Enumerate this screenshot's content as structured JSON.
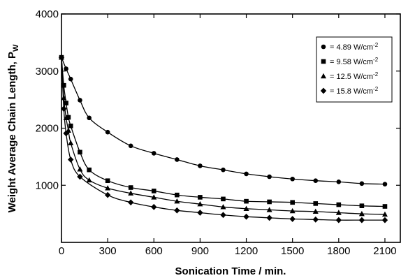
{
  "chart_data": {
    "type": "scatter",
    "xlabel": "Sonication Time / min.",
    "ylabel": "Weight Average Chain Length, P",
    "ylabel_sub": "W",
    "xlim": [
      0,
      2200
    ],
    "ylim": [
      0,
      4000
    ],
    "x_ticks": [
      "0",
      "300",
      "600",
      "900",
      "1200",
      "1500",
      "1800",
      "2100"
    ],
    "x_tick_values": [
      0,
      300,
      600,
      900,
      1200,
      1500,
      1800,
      2100
    ],
    "y_ticks": [
      "1000",
      "2000",
      "3000",
      "4000"
    ],
    "y_tick_values": [
      1000,
      2000,
      3000,
      4000
    ],
    "legend_position": "top-right",
    "series": [
      {
        "name": "= 4.89 W/cm",
        "name_sup": "-2",
        "marker": "circle",
        "points": [
          [
            0,
            3240
          ],
          [
            30,
            3040
          ],
          [
            60,
            2860
          ],
          [
            120,
            2490
          ],
          [
            180,
            2180
          ],
          [
            300,
            1930
          ],
          [
            450,
            1690
          ],
          [
            600,
            1560
          ],
          [
            750,
            1450
          ],
          [
            900,
            1340
          ],
          [
            1050,
            1270
          ],
          [
            1200,
            1200
          ],
          [
            1350,
            1150
          ],
          [
            1500,
            1110
          ],
          [
            1650,
            1080
          ],
          [
            1800,
            1060
          ],
          [
            1950,
            1030
          ],
          [
            2100,
            1020
          ]
        ]
      },
      {
        "name": "= 9.58 W/cm",
        "name_sup": "-2",
        "marker": "square",
        "points": [
          [
            0,
            3240
          ],
          [
            15,
            2750
          ],
          [
            30,
            2440
          ],
          [
            45,
            2190
          ],
          [
            60,
            2040
          ],
          [
            120,
            1580
          ],
          [
            180,
            1270
          ],
          [
            300,
            1080
          ],
          [
            450,
            960
          ],
          [
            600,
            900
          ],
          [
            750,
            830
          ],
          [
            900,
            790
          ],
          [
            1050,
            760
          ],
          [
            1200,
            720
          ],
          [
            1350,
            710
          ],
          [
            1500,
            700
          ],
          [
            1650,
            680
          ],
          [
            1800,
            660
          ],
          [
            1950,
            640
          ],
          [
            2100,
            630
          ]
        ]
      },
      {
        "name": "= 12.5 W/cm",
        "name_sup": "-2",
        "marker": "triangle",
        "points": [
          [
            0,
            3240
          ],
          [
            15,
            2530
          ],
          [
            30,
            2180
          ],
          [
            45,
            1960
          ],
          [
            60,
            1740
          ],
          [
            120,
            1280
          ],
          [
            180,
            1090
          ],
          [
            300,
            950
          ],
          [
            450,
            860
          ],
          [
            600,
            790
          ],
          [
            750,
            720
          ],
          [
            900,
            670
          ],
          [
            1050,
            620
          ],
          [
            1200,
            590
          ],
          [
            1350,
            570
          ],
          [
            1500,
            550
          ],
          [
            1650,
            540
          ],
          [
            1800,
            520
          ],
          [
            1950,
            500
          ],
          [
            2100,
            490
          ]
        ]
      },
      {
        "name": "= 15.8 W/cm",
        "name_sup": "-2",
        "marker": "diamond",
        "points": [
          [
            0,
            3240
          ],
          [
            15,
            2340
          ],
          [
            30,
            1910
          ],
          [
            60,
            1450
          ],
          [
            120,
            1150
          ],
          [
            300,
            830
          ],
          [
            450,
            700
          ],
          [
            600,
            620
          ],
          [
            750,
            560
          ],
          [
            900,
            520
          ],
          [
            1050,
            480
          ],
          [
            1200,
            450
          ],
          [
            1350,
            430
          ],
          [
            1500,
            410
          ],
          [
            1650,
            400
          ],
          [
            1800,
            390
          ],
          [
            1950,
            390
          ],
          [
            2100,
            390
          ]
        ]
      }
    ]
  }
}
